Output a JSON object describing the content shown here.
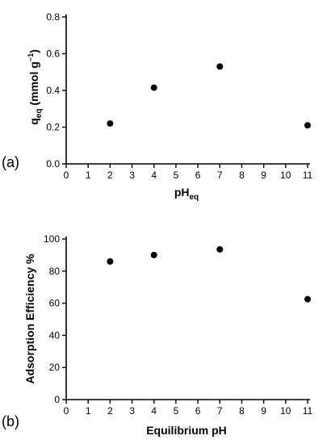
{
  "chart_data": [
    {
      "type": "scatter",
      "panel_label": "(a)",
      "xlabel": {
        "main": "pH",
        "sub": "eq"
      },
      "ylabel": {
        "main": "q",
        "sub": "eq",
        "unit_open": " (mmol g",
        "sup": "−1",
        "unit_close": ")"
      },
      "xlim": [
        0,
        11
      ],
      "ylim": [
        0,
        0.8
      ],
      "x_ticks": [
        "0",
        "1",
        "2",
        "3",
        "4",
        "5",
        "6",
        "7",
        "8",
        "9",
        "10",
        "11"
      ],
      "y_ticks": [
        "0.0",
        "0.2",
        "0.4",
        "0.6",
        "0.8"
      ],
      "x": [
        2,
        4,
        7,
        11
      ],
      "y": [
        0.22,
        0.415,
        0.53,
        0.21
      ],
      "grid": false
    },
    {
      "type": "scatter",
      "panel_label": "(b)",
      "xlabel": "Equilibrium pH",
      "ylabel": "Adsorption Efficiency %",
      "xlim": [
        0,
        11
      ],
      "ylim": [
        0,
        100
      ],
      "x_ticks": [
        "0",
        "1",
        "2",
        "3",
        "4",
        "5",
        "6",
        "7",
        "8",
        "9",
        "10",
        "11"
      ],
      "y_ticks": [
        "0",
        "20",
        "40",
        "60",
        "80",
        "100"
      ],
      "x": [
        2,
        4,
        7,
        11
      ],
      "y": [
        86,
        90,
        93.5,
        62.5
      ],
      "grid": false
    }
  ]
}
